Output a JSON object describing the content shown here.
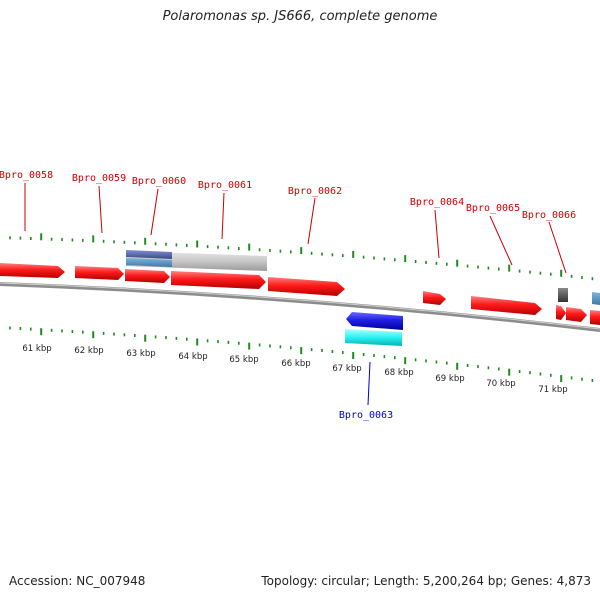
{
  "title": "Polaromonas sp. JS666, complete genome",
  "footer": {
    "accession": "Accession: NC_007948",
    "summary": "Topology: circular; Length: 5,200,264 bp; Genes: 4,873"
  },
  "colors": {
    "forward_gene": "#ff1a1a",
    "reverse_gene": "#1f1fe6",
    "reverse_feature": "#33f5f5",
    "label_forward": "#cc0000",
    "label_reverse": "#0000cc",
    "tick": "#1f8a1f",
    "backbone": "#8c8c8c",
    "grey_feature": "#c8c8c8",
    "blue_feature": "#5060a8",
    "dark_grey_feature": "#555555",
    "steel_blue_feature": "#4a88bb"
  },
  "gene_labels": [
    {
      "id": "Bpro_0058",
      "strand": "forward"
    },
    {
      "id": "Bpro_0059",
      "strand": "forward"
    },
    {
      "id": "Bpro_0060",
      "strand": "forward"
    },
    {
      "id": "Bpro_0061",
      "strand": "forward"
    },
    {
      "id": "Bpro_0062",
      "strand": "forward"
    },
    {
      "id": "Bpro_0064",
      "strand": "forward"
    },
    {
      "id": "Bpro_0065",
      "strand": "forward"
    },
    {
      "id": "Bpro_0066",
      "strand": "forward"
    },
    {
      "id": "Bpro_0063",
      "strand": "reverse"
    }
  ],
  "kbp_labels": [
    "61 kbp",
    "62 kbp",
    "63 kbp",
    "64 kbp",
    "65 kbp",
    "66 kbp",
    "67 kbp",
    "68 kbp",
    "69 kbp",
    "70 kbp",
    "71 kbp"
  ]
}
